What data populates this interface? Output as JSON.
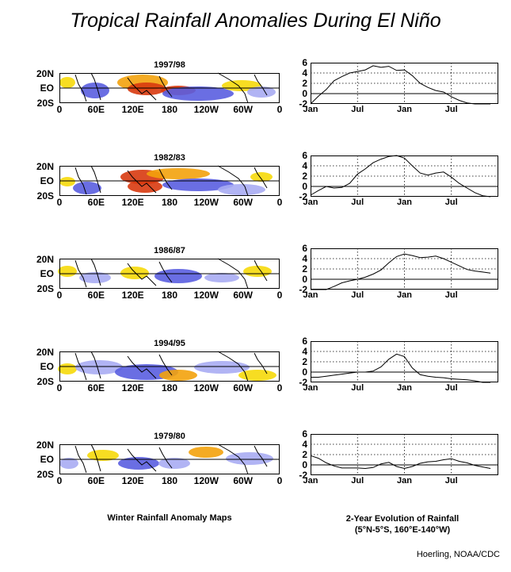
{
  "title": "Tropical Rainfall Anomalies During El Niño",
  "map_caption": "Winter Rainfall Anomaly Maps",
  "evolution_caption_line1": "2-Year Evolution of Rainfall",
  "evolution_caption_line2": "(5°N-5°S, 160°E-140°W)",
  "credit": "Hoerling, NOAA/CDC",
  "map_axes": {
    "lat_labels": [
      "20N",
      "EO",
      "20S"
    ],
    "lon_labels": [
      "0",
      "60E",
      "120E",
      "180",
      "120W",
      "60W",
      "0"
    ]
  },
  "colors": {
    "wet": "#d83a10",
    "wet_light": "#f3a20c",
    "dry_light": "#f6d90a",
    "negative": "#5a5ee0",
    "negative_light": "#a8acf3"
  },
  "chart_data": [
    {
      "type": "line",
      "panel": "1997/98",
      "x_labels": [
        "Jan",
        "Jul",
        "Jan",
        "Jul"
      ],
      "ylim": [
        -2,
        6
      ],
      "y_ticks": [
        -2,
        0,
        2,
        4,
        6
      ],
      "grid": true,
      "x": [
        0,
        1,
        2,
        3,
        4,
        5,
        6,
        7,
        8,
        9,
        10,
        11,
        12,
        13,
        14,
        15,
        16,
        17,
        18,
        19,
        20,
        21,
        22,
        23
      ],
      "y": [
        -2.0,
        -0.5,
        0.8,
        2.5,
        3.3,
        4.0,
        4.3,
        4.6,
        5.4,
        5.1,
        5.3,
        4.5,
        4.6,
        3.5,
        2.0,
        1.2,
        0.6,
        0.3,
        -0.6,
        -1.3,
        -1.8,
        -2.0,
        -2.2,
        -2.4
      ]
    },
    {
      "type": "line",
      "panel": "1982/83",
      "x_labels": [
        "Jan",
        "Jul",
        "Jan",
        "Jul"
      ],
      "ylim": [
        -2,
        6
      ],
      "y_ticks": [
        -2,
        0,
        2,
        4,
        6
      ],
      "grid": true,
      "x": [
        0,
        1,
        2,
        3,
        4,
        5,
        6,
        7,
        8,
        9,
        10,
        11,
        12,
        13,
        14,
        15,
        16,
        17,
        18,
        19,
        20,
        21,
        22,
        23
      ],
      "y": [
        -1.7,
        -0.8,
        0.0,
        -0.3,
        -0.2,
        0.6,
        2.4,
        3.4,
        4.6,
        5.3,
        5.8,
        6.0,
        5.5,
        4.0,
        2.6,
        2.2,
        2.6,
        2.8,
        1.8,
        0.6,
        -0.3,
        -1.2,
        -1.8,
        -2.2
      ]
    },
    {
      "type": "line",
      "panel": "1986/87",
      "x_labels": [
        "Jan",
        "Jul",
        "Jan",
        "Jul"
      ],
      "ylim": [
        -2,
        6
      ],
      "y_ticks": [
        -2,
        0,
        2,
        4,
        6
      ],
      "grid": true,
      "x": [
        0,
        1,
        2,
        3,
        4,
        5,
        6,
        7,
        8,
        9,
        10,
        11,
        12,
        13,
        14,
        15,
        16,
        17,
        18,
        19,
        20,
        21,
        22,
        23
      ],
      "y": [
        -2.0,
        -2.0,
        -2.0,
        -1.4,
        -0.7,
        -0.3,
        0.0,
        0.4,
        1.0,
        1.8,
        3.2,
        4.4,
        4.9,
        4.6,
        4.2,
        4.3,
        4.5,
        4.0,
        3.3,
        2.6,
        1.9,
        1.6,
        1.4,
        1.2
      ]
    },
    {
      "type": "line",
      "panel": "1994/95",
      "x_labels": [
        "Jan",
        "Jul",
        "Jan",
        "Jul"
      ],
      "ylim": [
        -2,
        6
      ],
      "y_ticks": [
        -2,
        0,
        2,
        4,
        6
      ],
      "grid": true,
      "x": [
        0,
        1,
        2,
        3,
        4,
        5,
        6,
        7,
        8,
        9,
        10,
        11,
        12,
        13,
        14,
        15,
        16,
        17,
        18,
        19,
        20,
        21,
        22,
        23
      ],
      "y": [
        -1.0,
        -1.0,
        -0.8,
        -0.6,
        -0.4,
        -0.2,
        0.0,
        0.0,
        0.2,
        1.0,
        2.5,
        3.5,
        3.0,
        0.8,
        -0.5,
        -0.8,
        -1.0,
        -1.1,
        -1.3,
        -1.4,
        -1.5,
        -1.7,
        -2.0,
        -2.2
      ]
    },
    {
      "type": "line",
      "panel": "1979/80",
      "x_labels": [
        "Jan",
        "Jul",
        "Jan",
        "Jul"
      ],
      "ylim": [
        -2,
        6
      ],
      "y_ticks": [
        -2,
        0,
        2,
        4,
        6
      ],
      "grid": true,
      "x": [
        0,
        1,
        2,
        3,
        4,
        5,
        6,
        7,
        8,
        9,
        10,
        11,
        12,
        13,
        14,
        15,
        16,
        17,
        18,
        19,
        20,
        21,
        22,
        23
      ],
      "y": [
        1.8,
        1.3,
        0.4,
        -0.2,
        -0.6,
        -0.6,
        -0.6,
        -0.7,
        -0.5,
        0.2,
        0.5,
        -0.3,
        -0.7,
        -0.3,
        0.3,
        0.6,
        0.7,
        1.0,
        1.2,
        0.7,
        0.4,
        -0.1,
        -0.4,
        -0.7
      ]
    }
  ]
}
